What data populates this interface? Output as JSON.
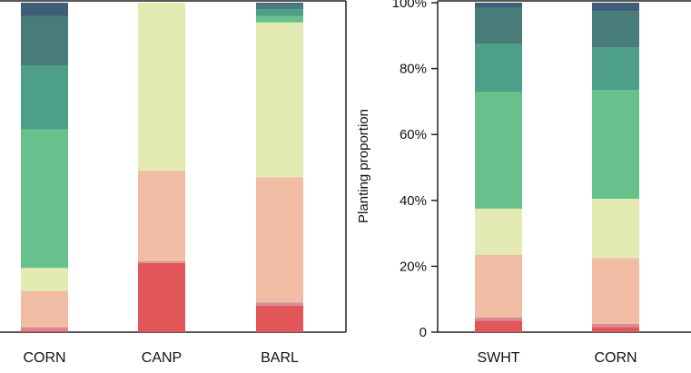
{
  "chart_data": [
    {
      "type": "bar",
      "stacked": true,
      "ylim": [
        0,
        100
      ],
      "grid": false,
      "categories": [
        "CORN",
        "CANP",
        "BARL"
      ],
      "series": [
        {
          "color": "#e15759",
          "values": [
            0.5,
            21,
            8
          ]
        },
        {
          "color": "#d98b94",
          "values": [
            1.0,
            0.5,
            1
          ]
        },
        {
          "color": "#f0bca3",
          "values": [
            11,
            27.5,
            38
          ]
        },
        {
          "color": "#e3ebb3",
          "values": [
            7,
            51,
            47
          ]
        },
        {
          "color": "#66c18c",
          "values": [
            42,
            0,
            2
          ]
        },
        {
          "color": "#4e9f87",
          "values": [
            19.5,
            0,
            2
          ]
        },
        {
          "color": "#487c78",
          "values": [
            15,
            0,
            1.5
          ]
        },
        {
          "color": "#3f5f78",
          "values": [
            4,
            0,
            0.5
          ]
        }
      ]
    },
    {
      "type": "bar",
      "stacked": true,
      "ylabel": "Planting proportion",
      "ylim": [
        0,
        100
      ],
      "yticks": [
        "0",
        "20%",
        "40%",
        "60%",
        "80%",
        "100%"
      ],
      "grid": false,
      "categories": [
        "SWHT",
        "CORN"
      ],
      "series": [
        {
          "color": "#e15759",
          "values": [
            3.5,
            1.5
          ]
        },
        {
          "color": "#d98b94",
          "values": [
            1,
            1
          ]
        },
        {
          "color": "#f0bca3",
          "values": [
            19,
            20
          ]
        },
        {
          "color": "#e3ebb3",
          "values": [
            14,
            18
          ]
        },
        {
          "color": "#66c18c",
          "values": [
            35.5,
            33
          ]
        },
        {
          "color": "#4e9f87",
          "values": [
            14.5,
            13
          ]
        },
        {
          "color": "#487c78",
          "values": [
            11,
            11
          ]
        },
        {
          "color": "#3f5f78",
          "values": [
            1.5,
            2.5
          ]
        }
      ]
    }
  ]
}
